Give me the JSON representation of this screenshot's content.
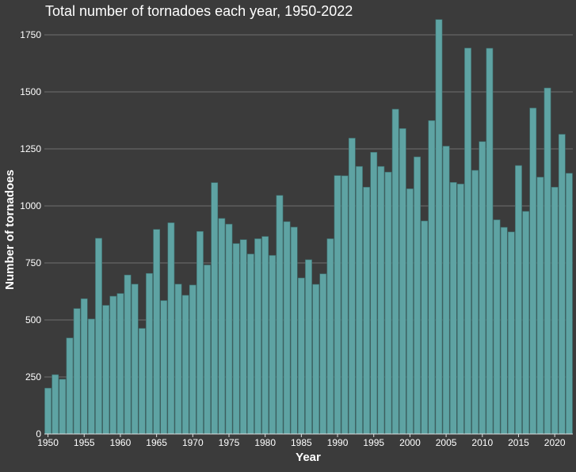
{
  "chart_data": {
    "type": "bar",
    "title": "Total number of tornadoes each year, 1950-2022",
    "xlabel": "Year",
    "ylabel": "Number of tornadoes",
    "x": [
      1950,
      1951,
      1952,
      1953,
      1954,
      1955,
      1956,
      1957,
      1958,
      1959,
      1960,
      1961,
      1962,
      1963,
      1964,
      1965,
      1966,
      1967,
      1968,
      1969,
      1970,
      1971,
      1972,
      1973,
      1974,
      1975,
      1976,
      1977,
      1978,
      1979,
      1980,
      1981,
      1982,
      1983,
      1984,
      1985,
      1986,
      1987,
      1988,
      1989,
      1990,
      1991,
      1992,
      1993,
      1994,
      1995,
      1996,
      1997,
      1998,
      1999,
      2000,
      2001,
      2002,
      2003,
      2004,
      2005,
      2006,
      2007,
      2008,
      2009,
      2010,
      2011,
      2012,
      2013,
      2014,
      2015,
      2016,
      2017,
      2018,
      2019,
      2020,
      2021,
      2022
    ],
    "values": [
      201,
      260,
      240,
      421,
      550,
      593,
      504,
      858,
      564,
      604,
      616,
      697,
      657,
      463,
      704,
      897,
      585,
      926,
      657,
      608,
      653,
      888,
      741,
      1102,
      945,
      920,
      835,
      852,
      789,
      856,
      866,
      783,
      1046,
      931,
      907,
      684,
      764,
      656,
      702,
      856,
      1133,
      1132,
      1297,
      1173,
      1082,
      1235,
      1173,
      1148,
      1424,
      1339,
      1075,
      1215,
      934,
      1374,
      1817,
      1262,
      1103,
      1096,
      1692,
      1156,
      1282,
      1691,
      939,
      906,
      886,
      1177,
      976,
      1429,
      1126,
      1517,
      1082,
      1314,
      1143
    ],
    "ylim": [
      0,
      1875
    ],
    "yticks": [
      0,
      250,
      500,
      750,
      1000,
      1250,
      1500,
      1750
    ],
    "xticks": [
      1950,
      1955,
      1960,
      1965,
      1970,
      1975,
      1980,
      1985,
      1990,
      1995,
      2000,
      2005,
      2010,
      2015,
      2020
    ],
    "grid": true,
    "colors": {
      "background": "#3b3b3b",
      "bar": "#5ea3a3",
      "bar_edge": "#3f7474",
      "grid": "#6f6f6f",
      "text": "#ffffff"
    }
  }
}
